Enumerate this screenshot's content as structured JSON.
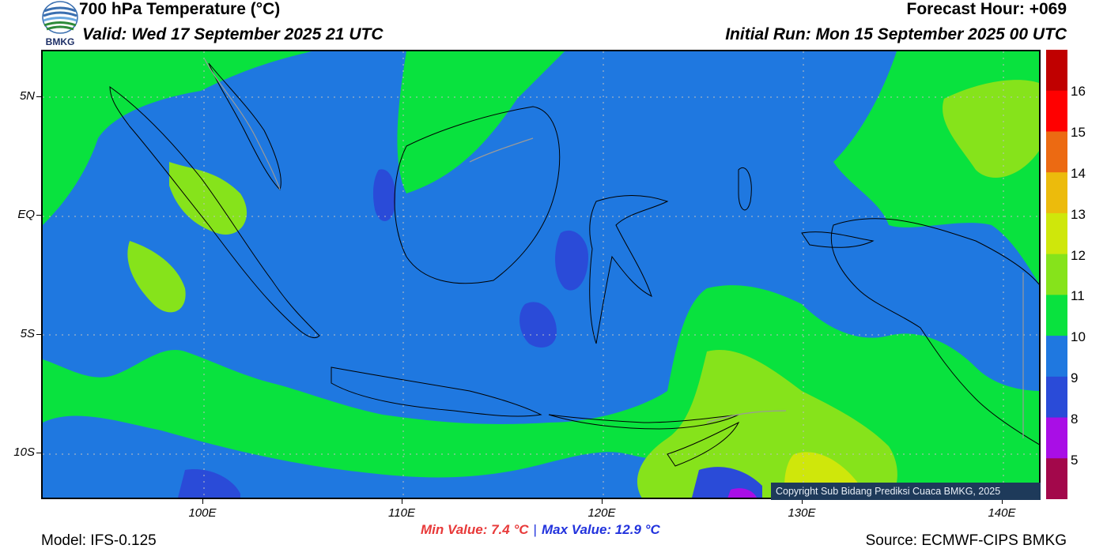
{
  "header": {
    "title": "700 hPa Temperature (°C)",
    "valid": "Valid: Wed 17 September 2025 21 UTC",
    "forecast_hour": "Forecast Hour: +069",
    "initial_run": "Initial Run: Mon 15 September 2025 00 UTC",
    "logo_text": "BMKG"
  },
  "map": {
    "lat_labels": [
      "5N",
      "EQ",
      "5S",
      "10S"
    ],
    "lon_labels": [
      "100E",
      "110E",
      "120E",
      "130E",
      "140E"
    ],
    "copyright": "Copyright Sub Bidang Prediksi Cuaca BMKG, 2025",
    "colors": {
      "c8": "#2a4bd8",
      "c9": "#1f78e0",
      "c10": "#09e23e",
      "c11": "#86e31b",
      "c12": "#cfe70b",
      "c13": "#ecbb0c",
      "coast": "#000000",
      "border": "#9a9a9a"
    }
  },
  "colorbar": {
    "labels": [
      "16",
      "15",
      "14",
      "13",
      "12",
      "11",
      "10",
      "9",
      "8",
      "5"
    ],
    "colors": [
      "#c00000",
      "#ff0000",
      "#ec6a12",
      "#ecbb0c",
      "#cfe70b",
      "#86e31b",
      "#09e23e",
      "#1f78e0",
      "#2a4bd8",
      "#a90ee6",
      "#a3084b"
    ]
  },
  "footer": {
    "min_value": "Min Value: 7.4 °C",
    "separator": "|",
    "max_value": "Max Value: 12.9 °C",
    "model": "Model: IFS-0.125",
    "source": "Source: ECMWF-CIPS BMKG"
  }
}
